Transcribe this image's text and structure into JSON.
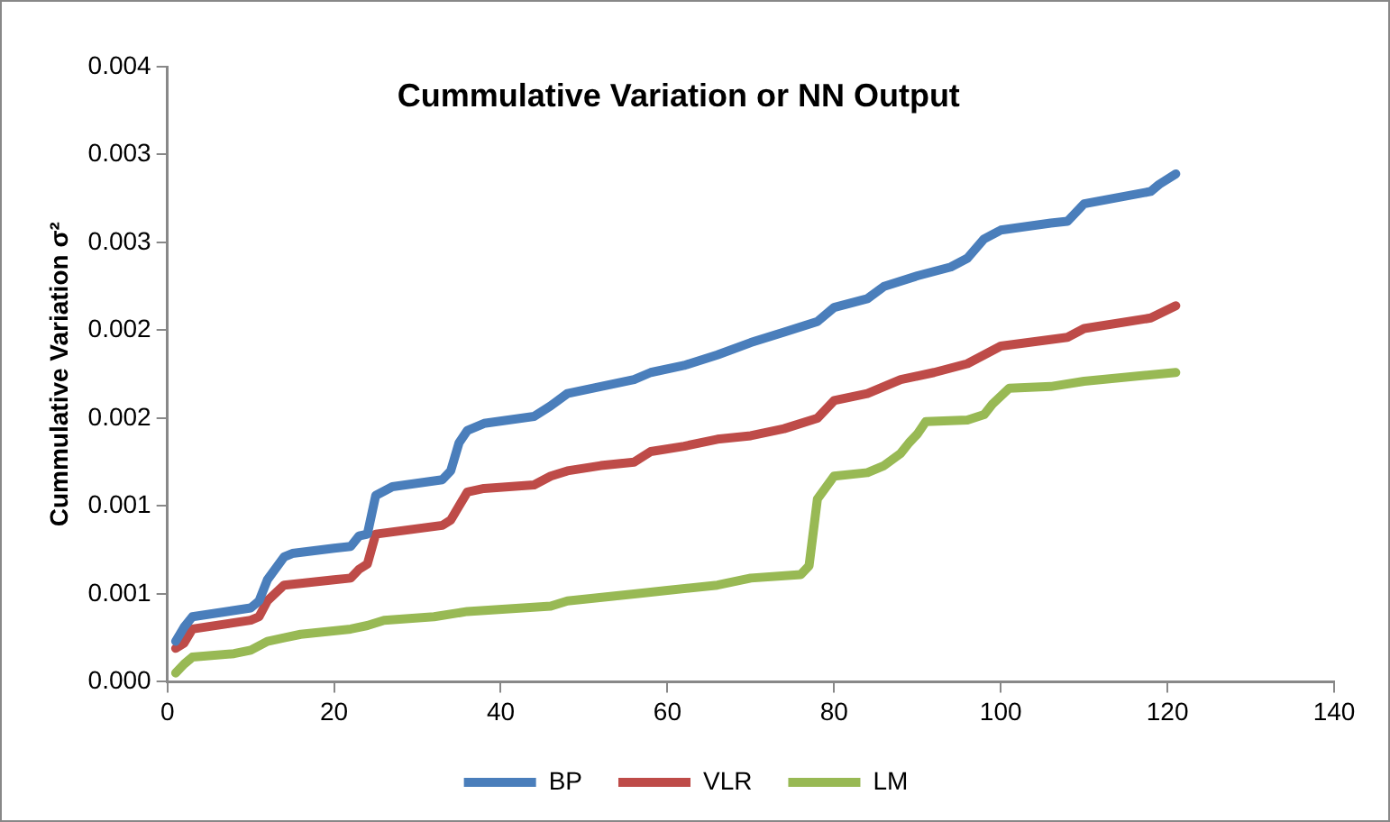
{
  "chart_data": {
    "type": "line",
    "title": "Cummulative Variation or NN Output",
    "ylabel": "Cummulative Variation σ²",
    "xlim": [
      0,
      140
    ],
    "xticks": [
      0,
      20,
      40,
      60,
      80,
      100,
      120,
      140
    ],
    "ylim": [
      0,
      0.0035
    ],
    "yticks": [
      {
        "value": 0,
        "label": "0.000"
      },
      {
        "value": 0.0005,
        "label": "0.001"
      },
      {
        "value": 0.001,
        "label": "0.001"
      },
      {
        "value": 0.0015,
        "label": "0.002"
      },
      {
        "value": 0.002,
        "label": "0.002"
      },
      {
        "value": 0.0025,
        "label": "0.003"
      },
      {
        "value": 0.003,
        "label": "0.003"
      },
      {
        "value": 0.0035,
        "label": "0.004"
      }
    ],
    "grid": false,
    "legend": "bottom",
    "marker": "none",
    "line_style": "solid",
    "series": [
      {
        "name": "BP",
        "color": "#4a7ebb",
        "x": [
          1,
          2,
          3,
          10,
          11,
          12,
          14,
          15,
          20,
          22,
          23,
          24,
          25,
          27,
          33,
          34,
          35,
          36,
          38,
          44,
          46,
          48,
          52,
          56,
          58,
          62,
          66,
          70,
          74,
          78,
          80,
          84,
          86,
          90,
          94,
          96,
          98,
          100,
          106,
          108,
          110,
          118,
          119,
          121
        ],
        "values": [
          0.00023,
          0.00031,
          0.00037,
          0.00042,
          0.00046,
          0.00058,
          0.00071,
          0.00073,
          0.00076,
          0.00077,
          0.00083,
          0.00084,
          0.00106,
          0.00111,
          0.00115,
          0.0012,
          0.00136,
          0.00143,
          0.00147,
          0.00151,
          0.00157,
          0.00164,
          0.00168,
          0.00172,
          0.00176,
          0.0018,
          0.00186,
          0.00193,
          0.00199,
          0.00205,
          0.00213,
          0.00218,
          0.00225,
          0.00231,
          0.00236,
          0.00241,
          0.00252,
          0.00257,
          0.00261,
          0.00262,
          0.00272,
          0.00279,
          0.00283,
          0.00289
        ]
      },
      {
        "name": "VLR",
        "color": "#be4b48",
        "x": [
          1,
          2,
          3,
          10,
          11,
          12,
          14,
          20,
          22,
          23,
          24,
          25,
          33,
          34,
          36,
          38,
          44,
          46,
          48,
          52,
          56,
          58,
          62,
          66,
          70,
          74,
          78,
          80,
          84,
          88,
          92,
          96,
          100,
          108,
          110,
          118,
          121
        ],
        "values": [
          0.00019,
          0.00022,
          0.0003,
          0.00035,
          0.00037,
          0.00046,
          0.00055,
          0.00058,
          0.00059,
          0.00064,
          0.00067,
          0.00084,
          0.00089,
          0.00092,
          0.00108,
          0.0011,
          0.00112,
          0.00117,
          0.0012,
          0.00123,
          0.00125,
          0.00131,
          0.00134,
          0.00138,
          0.0014,
          0.00144,
          0.0015,
          0.0016,
          0.00164,
          0.00172,
          0.00176,
          0.00181,
          0.00191,
          0.00196,
          0.00201,
          0.00207,
          0.00214
        ]
      },
      {
        "name": "LM",
        "color": "#98b954",
        "x": [
          1,
          2,
          3,
          8,
          10,
          12,
          14,
          16,
          22,
          24,
          26,
          32,
          36,
          46,
          48,
          56,
          60,
          66,
          70,
          76,
          77,
          78,
          80,
          84,
          86,
          88,
          89,
          90,
          91,
          96,
          98,
          99,
          101,
          106,
          110,
          121
        ],
        "values": [
          5e-05,
          0.0001,
          0.00014,
          0.00016,
          0.00018,
          0.00023,
          0.00025,
          0.00027,
          0.0003,
          0.00032,
          0.00035,
          0.00037,
          0.0004,
          0.00043,
          0.00046,
          0.0005,
          0.00052,
          0.00055,
          0.00059,
          0.00061,
          0.00066,
          0.00104,
          0.00117,
          0.00119,
          0.00123,
          0.0013,
          0.00136,
          0.00141,
          0.00148,
          0.00149,
          0.00152,
          0.00158,
          0.00167,
          0.00168,
          0.00171,
          0.00176
        ]
      }
    ]
  }
}
